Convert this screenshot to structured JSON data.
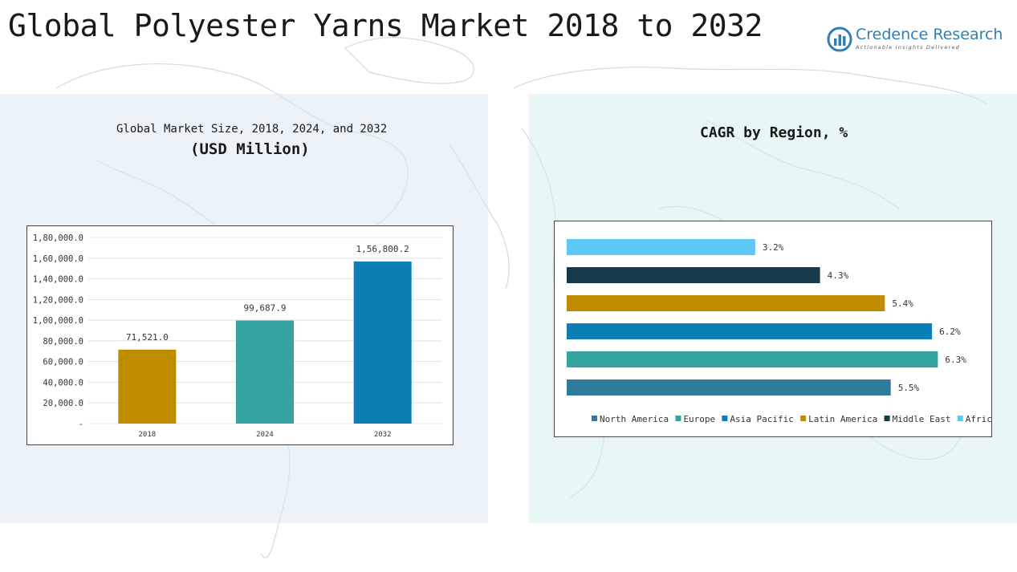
{
  "title": "Global Polyester Yarns Market 2018 to 2032",
  "logo": {
    "name": "Credence Research",
    "tagline": "Actionable Insights Delivered",
    "brand_color": "#2e7fb5"
  },
  "left_panel": {
    "subtitle_line1": "Global Market Size, 2018, 2024, and 2032",
    "subtitle_line2": "(USD Million)"
  },
  "right_panel": {
    "subtitle": "CAGR by Region, %"
  },
  "chart_data": [
    {
      "type": "bar",
      "title": "Global Market Size, 2018, 2024, and 2032 (USD Million)",
      "categories": [
        "2018",
        "2024",
        "2032"
      ],
      "values": [
        71521.0,
        99687.9,
        156800.2
      ],
      "value_labels": [
        "71,521.0",
        "99,687.9",
        "1,56,800.2"
      ],
      "colors": [
        "#bf8c00",
        "#36a3a1",
        "#0b7fb3"
      ],
      "ylim": [
        0,
        180000
      ],
      "y_ticks": [
        0,
        20000,
        40000,
        60000,
        80000,
        100000,
        120000,
        140000,
        160000,
        180000
      ],
      "y_tick_labels": [
        "-",
        "20,000.0",
        "40,000.0",
        "60,000.0",
        "80,000.0",
        "1,00,000.0",
        "1,20,000.0",
        "1,40,000.0",
        "1,60,000.0",
        "1,80,000.0"
      ],
      "grid": true
    },
    {
      "type": "bar",
      "orientation": "horizontal",
      "title": "CAGR by Region, %",
      "categories": [
        "Africa",
        "Middle East",
        "Latin America",
        "Asia Pacific",
        "Europe",
        "North America"
      ],
      "values": [
        3.2,
        4.3,
        5.4,
        6.2,
        6.3,
        5.5
      ],
      "value_labels": [
        "3.2%",
        "4.3%",
        "5.4%",
        "6.2%",
        "6.3%",
        "5.5%"
      ],
      "colors": [
        "#5bc8f5",
        "#163a4b",
        "#bf8c00",
        "#0b7fb3",
        "#36a3a1",
        "#2f7b9c"
      ],
      "legend": {
        "placement": "bottom",
        "items": [
          {
            "name": "North America",
            "color": "#2f7b9c"
          },
          {
            "name": "Europe",
            "color": "#36a3a1"
          },
          {
            "name": "Asia Pacific",
            "color": "#0b7fb3"
          },
          {
            "name": "Latin America",
            "color": "#bf8c00"
          },
          {
            "name": "Middle East",
            "color": "#163a4b"
          },
          {
            "name": "Africa",
            "color": "#5bc8f5"
          }
        ]
      },
      "grid": false
    }
  ]
}
